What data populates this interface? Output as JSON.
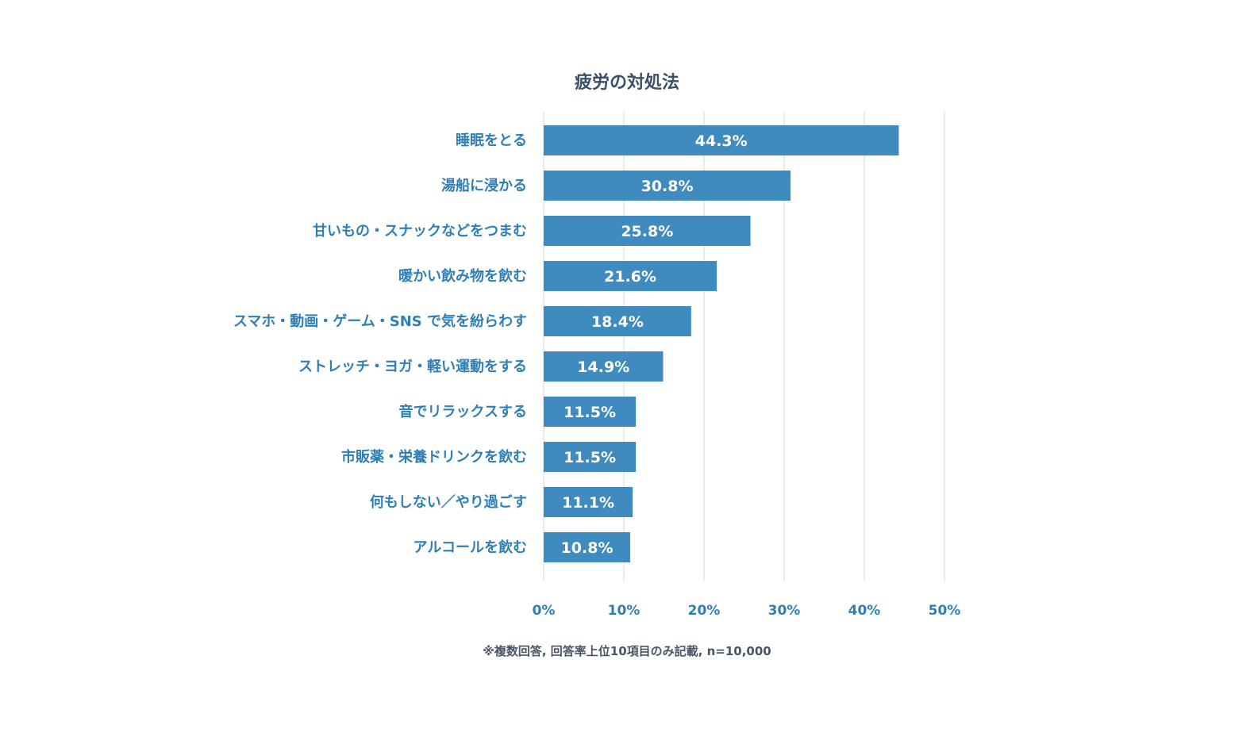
{
  "chart_data": {
    "type": "bar",
    "orientation": "horizontal",
    "title": "疲労の対処法",
    "categories": [
      "睡眠をとる",
      "湯船に浸かる",
      "甘いもの・スナックなどをつまむ",
      "暖かい飲み物を飲む",
      "スマホ・動画・ゲーム・SNS で気を紛らわす",
      "ストレッチ・ヨガ・軽い運動をする",
      "音でリラックスする",
      "市販薬・栄養ドリンクを飲む",
      "何もしない／やり過ごす",
      "アルコールを飲む"
    ],
    "values": [
      44.3,
      30.8,
      25.8,
      21.6,
      18.4,
      14.9,
      11.5,
      11.5,
      11.1,
      10.8
    ],
    "value_labels": [
      "44.3%",
      "30.8%",
      "25.8%",
      "21.6%",
      "18.4%",
      "14.9%",
      "11.5%",
      "11.5%",
      "11.1%",
      "10.8%"
    ],
    "xlim": [
      0,
      50
    ],
    "xticks": [
      0,
      10,
      20,
      30,
      40,
      50
    ],
    "xtick_labels": [
      "0%",
      "10%",
      "20%",
      "30%",
      "40%",
      "50%"
    ],
    "xlabel": "",
    "ylabel": "",
    "grid": true,
    "legend": "none",
    "note": "※複数回答, 回答率上位10項目のみ記載, n=10,000",
    "colors": {
      "bar": "#3f8bbf",
      "category_text": "#2f7fb5",
      "title_text": "#3e4f6a",
      "grid": "#cfd8e0"
    }
  }
}
